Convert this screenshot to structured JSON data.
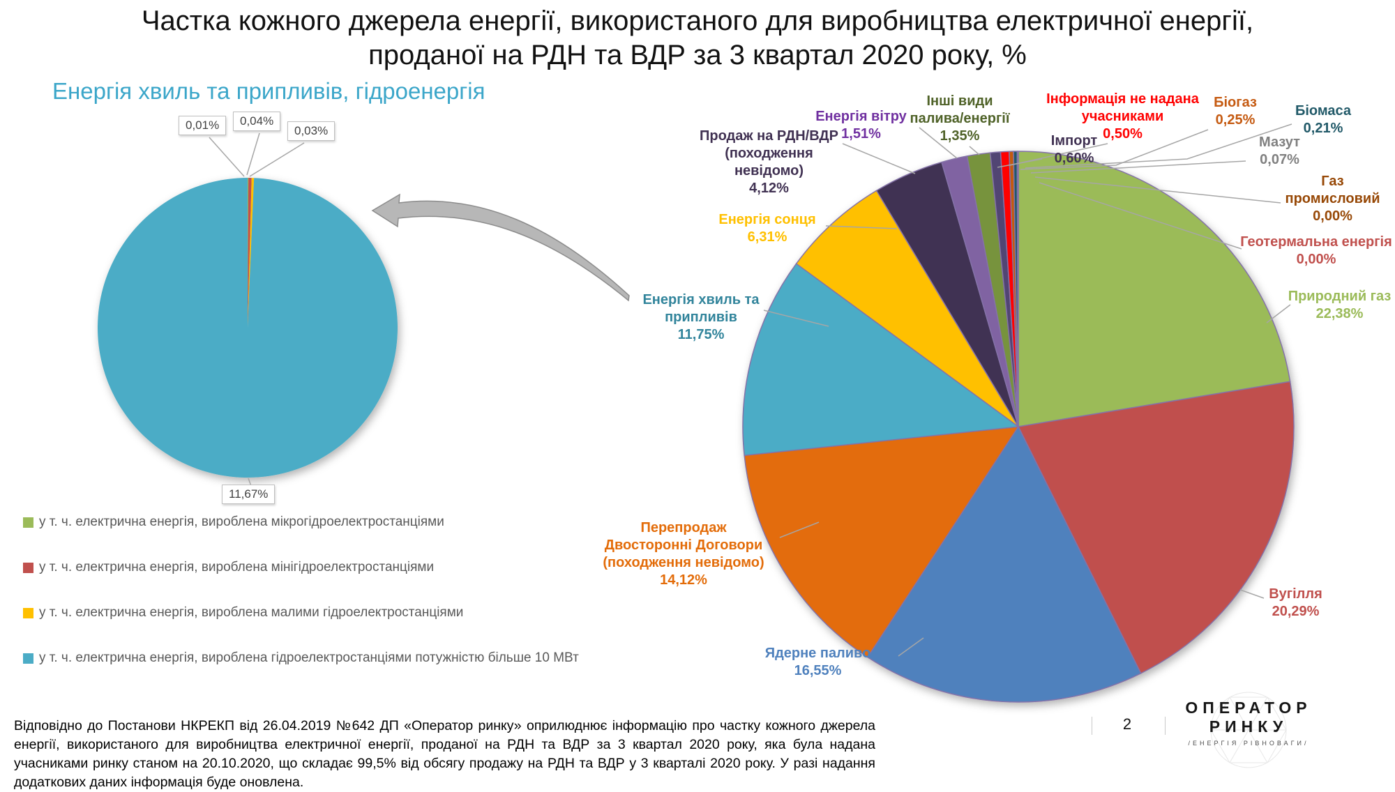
{
  "title": {
    "line1": "Частка кожного джерела енергії, використаного для виробництва електричної енергії,",
    "line2": "проданої на РДН та ВДР за 3 квартал 2020 року, %"
  },
  "subtitle_left": "Енергія хвиль та припливів, гідроенергія",
  "footer": {
    "note": "Відповідно до Постанови НКРЕКП від 26.04.2019 №642 ДП «Оператор ринку» оприлюднює інформацію про частку кожного джерела енергії, використаного для виробництва електричної енергії, проданої на РДН та ВДР за 3 квартал  2020 року, яка була надана учасниками ринку станом на 20.10.2020, що складає 99,5% від обсягу продажу на РДН та ВДР у 3 кварталі 2020 року.  У разі надання додаткових даних інформація буде оновлена.",
    "page_number": "2",
    "logo_line1": "ОПЕРАТОР",
    "logo_line2": "РИНКУ",
    "logo_tagline": "/ЕНЕРГІЯ РІВНОВАГИ/"
  },
  "chart_data": [
    {
      "id": "hydro_breakdown",
      "type": "pie",
      "title": "Енергія хвиль та припливів, гідроенергія",
      "legend_position": "bottom-left",
      "slices": [
        {
          "label": "у т. ч. електрична енергія, вироблена мікрогідроелектростанціями",
          "value": 0.01,
          "display": "0,01%",
          "color": "#9BBB59"
        },
        {
          "label": "у т. ч. електрична енергія, вироблена мінігідроелектростанціями",
          "value": 0.04,
          "display": "0,04%",
          "color": "#C0504D"
        },
        {
          "label": "у т. ч. електрична енергія, вироблена малими гідроелектростанціями",
          "value": 0.03,
          "display": "0,03%",
          "color": "#FFC000"
        },
        {
          "label": "у т. ч. електрична енергія, вироблена гідроелектростанціями потужністю більше 10 МВт",
          "value": 11.67,
          "display": "11,67%",
          "color": "#4BACC6"
        }
      ]
    },
    {
      "id": "main_energy_mix",
      "type": "pie",
      "slices": [
        {
          "label": "Природний газ",
          "value": 22.38,
          "display": "22,38%",
          "color": "#9BBB59",
          "label_color": "#9BBB59"
        },
        {
          "label": "Вугілля",
          "value": 20.29,
          "display": "20,29%",
          "color": "#C0504D",
          "label_color": "#C0504D"
        },
        {
          "label": "Ядерне паливо",
          "value": 16.55,
          "display": "16,55%",
          "color": "#4F81BD",
          "label_color": "#4F81BD"
        },
        {
          "label": "Перепродаж Двосторонні Договори (походження невідомо)",
          "value": 14.12,
          "display": "14,12%",
          "color": "#E36C09",
          "label_color": "#E36C09"
        },
        {
          "label": "Енергія хвиль та припливів",
          "value": 11.75,
          "display": "11,75%",
          "color": "#4BACC6",
          "label_color": "#31849B"
        },
        {
          "label": "Енергія сонця",
          "value": 6.31,
          "display": "6,31%",
          "color": "#FFC000",
          "label_color": "#FFC000"
        },
        {
          "label": "Продаж на РДН/ВДР (походження невідомо)",
          "value": 4.12,
          "display": "4,12%",
          "color": "#403152",
          "label_color": "#403152"
        },
        {
          "label": "Енергія вітру",
          "value": 1.51,
          "display": "1,51%",
          "color": "#8064A2",
          "label_color": "#7030A0"
        },
        {
          "label": "Інші види палива/енергії",
          "value": 1.35,
          "display": "1,35%",
          "color": "#77933C",
          "label_color": "#4F6228"
        },
        {
          "label": "Імпорт",
          "value": 0.6,
          "display": "0,60%",
          "color": "#514573",
          "label_color": "#403152"
        },
        {
          "label": "Інформація не надана учасниками",
          "value": 0.5,
          "display": "0,50%",
          "color": "#FF0000",
          "label_color": "#FF0000"
        },
        {
          "label": "Біогаз",
          "value": 0.25,
          "display": "0,25%",
          "color": "#C55A11",
          "label_color": "#C55A11"
        },
        {
          "label": "Біомаса",
          "value": 0.21,
          "display": "0,21%",
          "color": "#215968",
          "label_color": "#215968"
        },
        {
          "label": "Мазут",
          "value": 0.07,
          "display": "0,07%",
          "color": "#A6A6A6",
          "label_color": "#808080"
        },
        {
          "label": "Газ промисловий",
          "value": 0.0,
          "display": "0,00%",
          "color": "#974806",
          "label_color": "#974806"
        },
        {
          "label": "Геотермальна енергія",
          "value": 0.0,
          "display": "0,00%",
          "color": "#C0504D",
          "label_color": "#C0504D"
        }
      ]
    }
  ]
}
